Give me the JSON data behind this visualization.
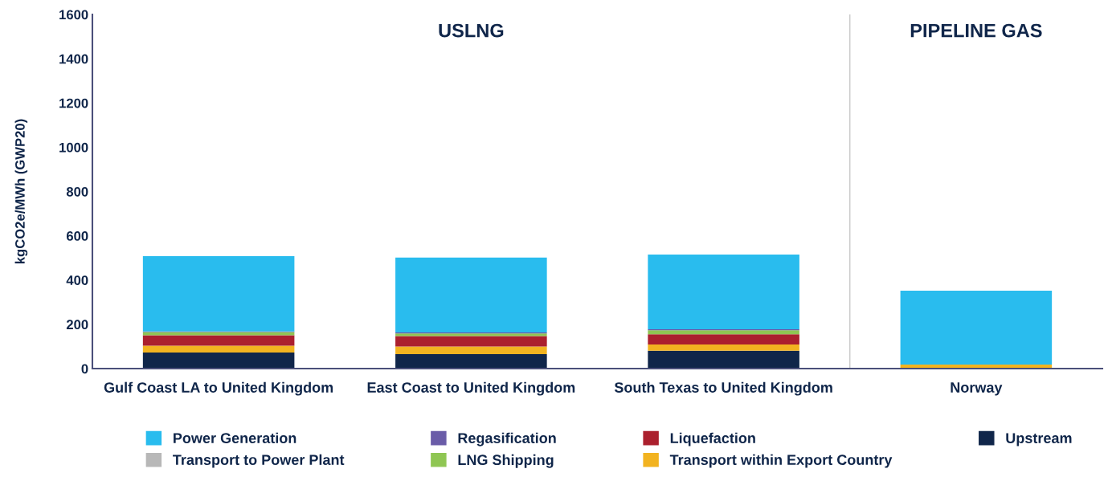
{
  "chart_data": {
    "type": "bar",
    "stacked": true,
    "ylabel": "kgCO2e/MWh (GWP20)",
    "categories": [
      "Gulf Coast LA to United Kingdom",
      "East Coast to United Kingdom",
      "South Texas to United Kingdom",
      "Norway"
    ],
    "ylim": [
      0,
      1600
    ],
    "yticks": [
      0,
      200,
      400,
      600,
      800,
      1000,
      1200,
      1400,
      1600
    ],
    "grid": false,
    "legend": "bottom",
    "annotations": [
      "USLNG",
      "PIPELINE GAS"
    ],
    "series": [
      {
        "name": "Upstream",
        "color": "#10264a",
        "values": [
          73,
          65,
          81,
          4
        ]
      },
      {
        "name": "Transport within Export Country",
        "color": "#f2b320",
        "values": [
          30,
          35,
          28,
          14
        ]
      },
      {
        "name": "Liquefaction",
        "color": "#ab202e",
        "values": [
          48,
          47,
          46,
          0
        ]
      },
      {
        "name": "LNG Shipping",
        "color": "#8fc653",
        "values": [
          14,
          12,
          18,
          0
        ]
      },
      {
        "name": "Regasification",
        "color": "#6a5ca8",
        "values": [
          3,
          4,
          5,
          0
        ]
      },
      {
        "name": "Transport to Power Plant",
        "color": "#b8b8b8",
        "values": [
          0,
          0,
          0,
          0
        ]
      },
      {
        "name": "Power Generation",
        "color": "#29bcee",
        "values": [
          340,
          339,
          337,
          334
        ]
      }
    ]
  }
}
